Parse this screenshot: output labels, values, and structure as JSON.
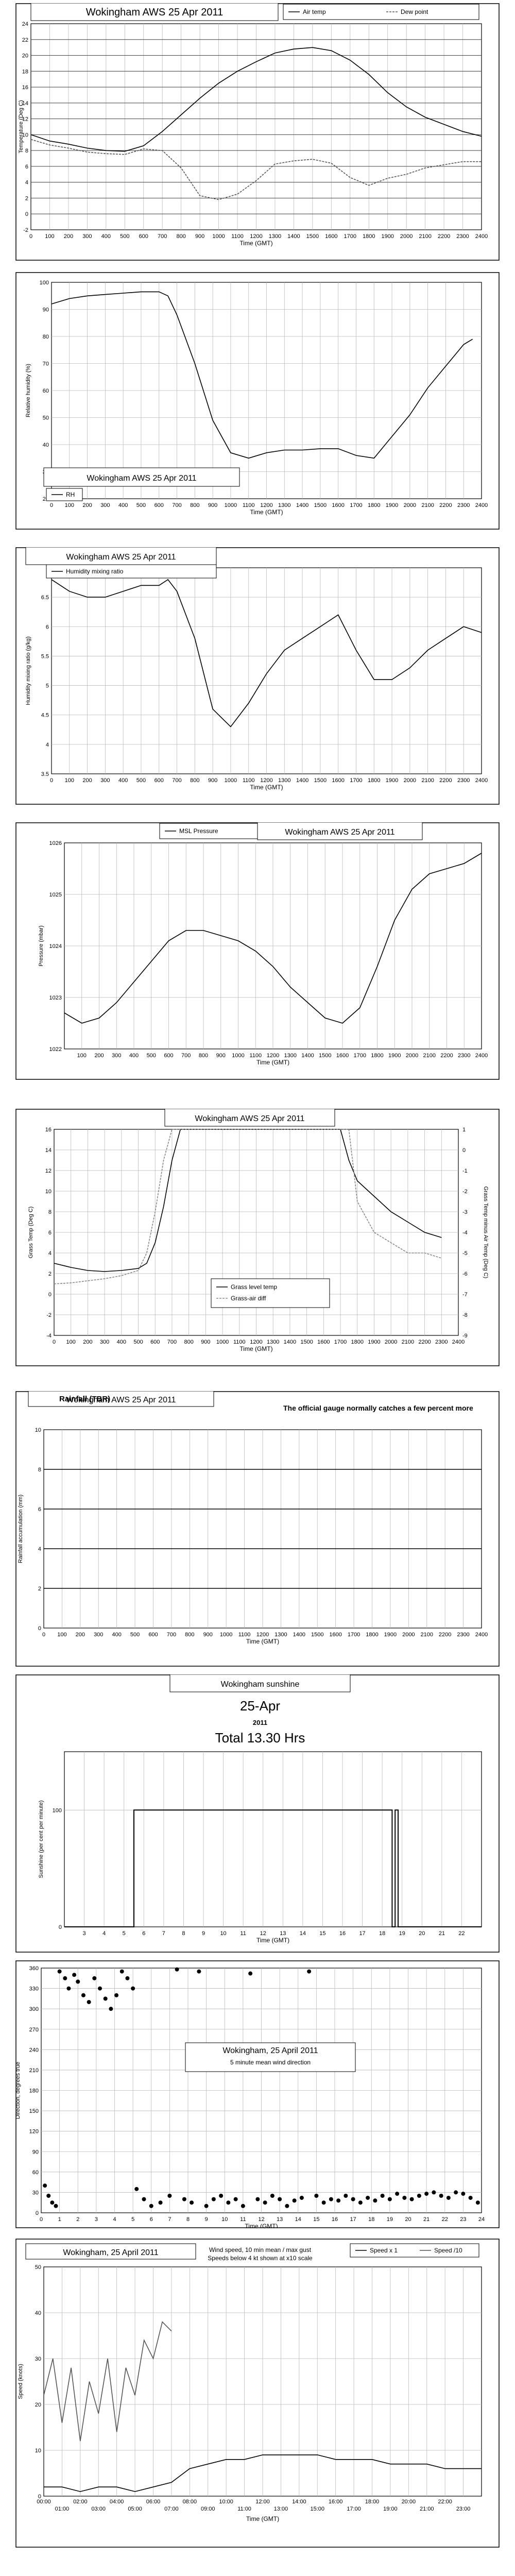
{
  "charts": [
    {
      "id": "temp",
      "type": "line",
      "title": "Wokingham AWS 25 Apr 2011",
      "xlabel": "Time (GMT)",
      "ylabel": "Temperature (Deg C)",
      "xlim": [
        0,
        2400
      ],
      "ylim": [
        -2,
        24
      ],
      "xticks": [
        "0",
        "100",
        "200",
        "300",
        "400",
        "500",
        "600",
        "700",
        "800",
        "900",
        "1000",
        "1100",
        "1200",
        "1300",
        "1400",
        "1500",
        "1600",
        "1700",
        "1800",
        "1900",
        "2000",
        "2100",
        "2200",
        "2300",
        "2400"
      ],
      "yticks": [
        "-2",
        "0",
        "2",
        "4",
        "6",
        "8",
        "10",
        "12",
        "14",
        "16",
        "18",
        "20",
        "22",
        "24"
      ],
      "series": [
        {
          "name": "Air temp",
          "color": "#000000",
          "x": [
            0,
            100,
            200,
            300,
            400,
            500,
            600,
            700,
            800,
            900,
            1000,
            1100,
            1200,
            1300,
            1400,
            1500,
            1600,
            1700,
            1800,
            1900,
            2000,
            2100,
            2200,
            2300,
            2400
          ],
          "y": [
            10.0,
            9.2,
            8.8,
            8.3,
            8.0,
            7.9,
            8.6,
            10.4,
            12.5,
            14.6,
            16.5,
            18.0,
            19.2,
            20.3,
            20.8,
            21.0,
            20.6,
            19.4,
            17.6,
            15.3,
            13.5,
            12.2,
            11.3,
            10.4,
            9.8
          ]
        },
        {
          "name": "Dew point",
          "color": "#555555",
          "x": [
            0,
            100,
            200,
            300,
            400,
            500,
            600,
            700,
            800,
            900,
            1000,
            1100,
            1200,
            1300,
            1400,
            1500,
            1600,
            1700,
            1800,
            1900,
            2000,
            2100,
            2200,
            2300,
            2400
          ],
          "y": [
            9.4,
            8.7,
            8.3,
            7.8,
            7.6,
            7.5,
            8.2,
            8.0,
            5.8,
            2.3,
            1.8,
            2.5,
            4.2,
            6.3,
            6.7,
            6.9,
            6.4,
            4.6,
            3.6,
            4.5,
            5.0,
            5.8,
            6.2,
            6.6,
            6.6
          ]
        }
      ]
    },
    {
      "id": "rh",
      "type": "line",
      "title": "Wokingham AWS 25 Apr 2011",
      "xlabel": "Time (GMT)",
      "ylabel": "Relative humidity (%)",
      "xlim": [
        0,
        2400
      ],
      "ylim": [
        20,
        100
      ],
      "xticks": [
        "0",
        "100",
        "200",
        "300",
        "400",
        "500",
        "600",
        "700",
        "800",
        "900",
        "1000",
        "1100",
        "1200",
        "1300",
        "1400",
        "1500",
        "1600",
        "1700",
        "1800",
        "1900",
        "2000",
        "2100",
        "2200",
        "2300",
        "2400"
      ],
      "yticks": [
        "20",
        "30",
        "40",
        "50",
        "60",
        "70",
        "80",
        "90",
        "100"
      ],
      "series": [
        {
          "name": "RH",
          "color": "#000000",
          "x": [
            0,
            100,
            200,
            300,
            400,
            500,
            600,
            650,
            700,
            800,
            900,
            1000,
            1100,
            1200,
            1300,
            1400,
            1500,
            1600,
            1700,
            1800,
            1900,
            2000,
            2100,
            2200,
            2300,
            2350
          ],
          "y": [
            92,
            94,
            95,
            95.5,
            96,
            96.5,
            96.5,
            95,
            88,
            70,
            49,
            37,
            35,
            37,
            38,
            38,
            38.5,
            38.5,
            36,
            35,
            43,
            51,
            61,
            69,
            77,
            79
          ]
        }
      ]
    },
    {
      "id": "mix",
      "type": "line",
      "title": "Wokingham AWS 25 Apr 2011",
      "xlabel": "Time (GMT)",
      "ylabel": "Humidity mixing ratio (g/kg)",
      "xlim": [
        0,
        2400
      ],
      "ylim": [
        3.5,
        7
      ],
      "xticks": [
        "0",
        "100",
        "200",
        "300",
        "400",
        "500",
        "600",
        "700",
        "800",
        "900",
        "1000",
        "1100",
        "1200",
        "1300",
        "1400",
        "1500",
        "1600",
        "1700",
        "1800",
        "1900",
        "2000",
        "2100",
        "2200",
        "2300",
        "2400"
      ],
      "yticks": [
        "3.5",
        "4",
        "4.5",
        "5",
        "5.5",
        "6",
        "6.5",
        "7"
      ],
      "series": [
        {
          "name": "Humidity mixing ratio",
          "color": "#000000",
          "x": [
            0,
            100,
            200,
            300,
            400,
            500,
            600,
            650,
            700,
            800,
            900,
            1000,
            1100,
            1200,
            1300,
            1400,
            1500,
            1600,
            1700,
            1800,
            1900,
            2000,
            2100,
            2200,
            2300,
            2400
          ],
          "y": [
            6.8,
            6.6,
            6.5,
            6.5,
            6.6,
            6.7,
            6.7,
            6.8,
            6.6,
            5.8,
            4.6,
            4.3,
            4.7,
            5.2,
            5.6,
            5.8,
            6.0,
            6.2,
            5.6,
            5.1,
            5.1,
            5.3,
            5.6,
            5.8,
            6.0,
            5.9
          ]
        }
      ]
    },
    {
      "id": "msl",
      "type": "line",
      "title": "Wokingham AWS 25 Apr 2011",
      "xlabel": "Time (GMT)",
      "ylabel": "Pressure (mbar)",
      "xlim": [
        0,
        2400
      ],
      "ylim": [
        1022,
        1026
      ],
      "xticks": [
        "100",
        "200",
        "300",
        "400",
        "500",
        "600",
        "700",
        "800",
        "900",
        "1000",
        "1100",
        "1200",
        "1300",
        "1400",
        "1500",
        "1600",
        "1700",
        "1800",
        "1900",
        "2000",
        "2100",
        "2200",
        "2300",
        "2400"
      ],
      "yticks": [
        "1022",
        "1023",
        "1024",
        "1025",
        "1026"
      ],
      "series": [
        {
          "name": "MSL Pressure",
          "color": "#000000",
          "x": [
            0,
            100,
            200,
            300,
            400,
            500,
            600,
            700,
            800,
            900,
            1000,
            1100,
            1200,
            1300,
            1400,
            1500,
            1600,
            1700,
            1800,
            1900,
            2000,
            2100,
            2200,
            2300,
            2400
          ],
          "y": [
            1022.7,
            1022.5,
            1022.6,
            1022.9,
            1023.3,
            1023.7,
            1024.1,
            1024.3,
            1024.3,
            1024.2,
            1024.1,
            1023.9,
            1023.6,
            1023.2,
            1022.9,
            1022.6,
            1022.5,
            1022.8,
            1023.6,
            1024.5,
            1025.1,
            1025.4,
            1025.5,
            1025.6,
            1025.8
          ]
        }
      ]
    },
    {
      "id": "grass",
      "type": "line",
      "title": "Wokingham AWS 25 Apr 2011",
      "xlabel": "Time (GMT)",
      "ylabel": "Grass Temp (Deg C)",
      "ylabel2": "Grass Temp minus Air Temp (Deg C)",
      "xlim": [
        0,
        2400
      ],
      "ylim": [
        -4,
        16
      ],
      "y2lim": [
        -9,
        1
      ],
      "xticks": [
        "0",
        "100",
        "200",
        "300",
        "400",
        "500",
        "600",
        "700",
        "800",
        "900",
        "1000",
        "1100",
        "1200",
        "1300",
        "1400",
        "1500",
        "1600",
        "1700",
        "1800",
        "1900",
        "2000",
        "2100",
        "2200",
        "2300",
        "2400"
      ],
      "yticks": [
        "-4",
        "-2",
        "0",
        "2",
        "4",
        "6",
        "8",
        "10",
        "12",
        "14",
        "16"
      ],
      "y2ticks": [
        "-9",
        "-8",
        "-7",
        "-6",
        "-5",
        "-4",
        "-3",
        "-2",
        "-1",
        "0",
        "1"
      ],
      "series": [
        {
          "name": "Grass level temp",
          "color": "#000000",
          "x": [
            0,
            100,
            200,
            300,
            400,
            500,
            550,
            600,
            650,
            700,
            750,
            1700,
            1750,
            1800,
            1900,
            2000,
            2100,
            2200,
            2300
          ],
          "y": [
            3.0,
            2.6,
            2.3,
            2.2,
            2.3,
            2.5,
            3.0,
            5.0,
            8.5,
            13.0,
            16.0,
            16.0,
            13.0,
            11.0,
            9.5,
            8.0,
            7.0,
            6.0,
            5.5
          ]
        },
        {
          "name": "Grass-air diff",
          "color": "#888888",
          "x": [
            0,
            100,
            200,
            300,
            400,
            500,
            550,
            600,
            650,
            700,
            1750,
            1800,
            1900,
            2000,
            2100,
            2200,
            2300
          ],
          "y": [
            1.0,
            1.1,
            1.3,
            1.5,
            1.8,
            2.3,
            4.0,
            8.0,
            13.0,
            16.0,
            16.0,
            9.0,
            6.0,
            5.0,
            4.0,
            4.0,
            3.5
          ]
        }
      ]
    },
    {
      "id": "rain",
      "type": "line",
      "title": "Wokingham AWS 25 Apr 2011",
      "subtitle": "Rainfall (TBR)",
      "annotation": "The official gauge normally catches a few percent more",
      "xlabel": "Time (GMT)",
      "ylabel": "Rainfall accumulation (mm)",
      "xlim": [
        0,
        2400
      ],
      "ylim": [
        0,
        10
      ],
      "xticks": [
        "0",
        "100",
        "200",
        "300",
        "400",
        "500",
        "600",
        "700",
        "800",
        "900",
        "1000",
        "1100",
        "1200",
        "1300",
        "1400",
        "1500",
        "1600",
        "1700",
        "1800",
        "1900",
        "2000",
        "2100",
        "2200",
        "2300",
        "2400"
      ],
      "yticks": [
        "0",
        "2",
        "4",
        "6",
        "8",
        "10"
      ],
      "series": []
    },
    {
      "id": "sun",
      "type": "line",
      "title": "Wokingham sunshine",
      "subtitle": "25-Apr",
      "year": "2011",
      "total": "Total 13.30 Hrs",
      "xlabel": "Time (GMT)",
      "ylabel": "Sunshine (per cent per minute)",
      "xlim": [
        2,
        23
      ],
      "ylim": [
        0,
        150
      ],
      "xticks": [
        "3",
        "4",
        "5",
        "6",
        "7",
        "8",
        "9",
        "10",
        "11",
        "12",
        "13",
        "14",
        "15",
        "16",
        "17",
        "18",
        "19",
        "20",
        "21",
        "22"
      ],
      "yticks": [
        "0",
        "100"
      ],
      "series": [
        {
          "name": "Sunshine",
          "color": "#000000",
          "x": [
            2,
            5.5,
            5.5,
            18.5,
            18.5,
            18.65,
            18.65,
            18.8,
            18.8,
            23
          ],
          "y": [
            0,
            0,
            100,
            100,
            0,
            0,
            100,
            100,
            0,
            0
          ]
        }
      ]
    },
    {
      "id": "dir",
      "type": "scatter",
      "title": "Wokingham,  25 April 2011",
      "subtitle": "5 minute mean wind direction",
      "xlabel": "Time (GMT)",
      "ylabel": "Direction, degrees true",
      "xlim": [
        0,
        24
      ],
      "ylim": [
        0,
        360
      ],
      "xticks": [
        "0",
        "1",
        "2",
        "3",
        "4",
        "5",
        "6",
        "7",
        "8",
        "9",
        "10",
        "11",
        "12",
        "13",
        "14",
        "15",
        "16",
        "17",
        "18",
        "19",
        "20",
        "21",
        "22",
        "23",
        "24"
      ],
      "yticks": [
        "0",
        "30",
        "60",
        "90",
        "120",
        "150",
        "180",
        "210",
        "240",
        "270",
        "300",
        "330",
        "360"
      ],
      "series": [
        {
          "name": "Direction",
          "color": "#000000",
          "x": [
            0.2,
            0.4,
            0.6,
            0.8,
            1.0,
            1.3,
            1.5,
            1.8,
            2.0,
            2.3,
            2.6,
            2.9,
            3.2,
            3.5,
            3.8,
            4.1,
            4.4,
            4.7,
            5.0,
            5.2,
            5.6,
            6.0,
            6.5,
            7.0,
            7.4,
            7.8,
            8.2,
            8.6,
            9.0,
            9.4,
            9.8,
            10.2,
            10.6,
            11.0,
            11.4,
            11.8,
            12.2,
            12.6,
            13.0,
            13.4,
            13.8,
            14.2,
            14.6,
            15.0,
            15.4,
            15.8,
            16.2,
            16.6,
            17.0,
            17.4,
            17.8,
            18.2,
            18.6,
            19.0,
            19.4,
            19.8,
            20.2,
            20.6,
            21.0,
            21.4,
            21.8,
            22.2,
            22.6,
            23.0,
            23.4,
            23.8
          ],
          "y": [
            40,
            25,
            15,
            10,
            355,
            345,
            330,
            350,
            340,
            320,
            310,
            345,
            330,
            315,
            300,
            320,
            355,
            345,
            330,
            35,
            20,
            10,
            15,
            25,
            358,
            20,
            15,
            355,
            10,
            20,
            25,
            15,
            20,
            10,
            352,
            20,
            15,
            25,
            20,
            10,
            18,
            22,
            355,
            25,
            15,
            20,
            18,
            25,
            20,
            15,
            22,
            18,
            25,
            20,
            28,
            22,
            20,
            25,
            28,
            30,
            25,
            22,
            30,
            28,
            22,
            15
          ]
        }
      ]
    },
    {
      "id": "speed",
      "type": "line",
      "title": "Wokingham,  25 April 2011",
      "subtitle": "Wind speed, 10 min mean / max gust",
      "note": "Speeds below 4 kt shown at x10 scale",
      "xlabel": "Time (GMT)",
      "ylabel": "Speed (knots)",
      "xlim": [
        0,
        24
      ],
      "ylim": [
        0,
        50
      ],
      "xticks": [
        "00:00",
        "01:00",
        "02:00",
        "03:00",
        "04:00",
        "05:00",
        "06:00",
        "07:00",
        "08:00",
        "09:00",
        "10:00",
        "11:00",
        "12:00",
        "13:00",
        "14:00",
        "15:00",
        "16:00",
        "17:00",
        "18:00",
        "19:00",
        "20:00",
        "21:00",
        "22:00",
        "23:00"
      ],
      "yticks": [
        "0",
        "10",
        "20",
        "30",
        "40",
        "50"
      ],
      "series": [
        {
          "name": "Speed x 1",
          "color": "#000000",
          "x": [
            0,
            1,
            2,
            3,
            4,
            5,
            6,
            7,
            8,
            9,
            10,
            11,
            12,
            13,
            14,
            15,
            16,
            17,
            18,
            19,
            20,
            21,
            22,
            23,
            24
          ],
          "y": [
            2,
            2,
            1,
            2,
            2,
            1,
            2,
            3,
            6,
            7,
            8,
            8,
            9,
            9,
            9,
            9,
            8,
            8,
            8,
            7,
            7,
            7,
            6,
            6,
            6
          ]
        },
        {
          "name": "Speed /10",
          "color": "#555555",
          "x": [
            0,
            0.5,
            1,
            1.5,
            2,
            2.5,
            3,
            3.5,
            4,
            4.5,
            5,
            5.5,
            6,
            6.5,
            7
          ],
          "y": [
            22,
            30,
            16,
            28,
            12,
            25,
            18,
            30,
            14,
            28,
            22,
            34,
            30,
            38,
            36
          ]
        }
      ]
    }
  ]
}
